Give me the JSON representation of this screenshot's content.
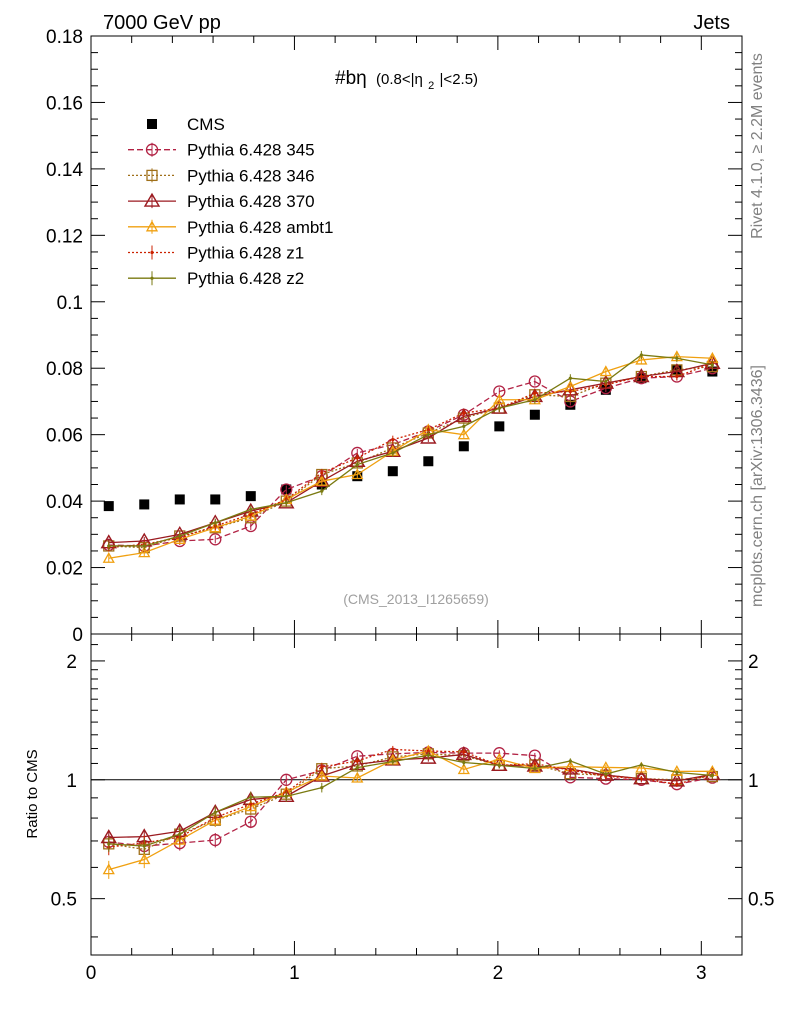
{
  "header": {
    "left": "7000 GeV pp",
    "right": "Jets"
  },
  "side_labels": {
    "rivet": "Rivet 4.1.0, ≥ 2.2M events",
    "mcplots": "mcplots.cern.ch [arXiv:1306.3436]"
  },
  "title": {
    "main": "#bη",
    "cut_prefix": "(0.8<|η",
    "cut_sub": "2",
    "cut_suffix": "|<2.5)"
  },
  "watermark": "(CMS_2013_I1265659)",
  "ratio_ylabel": "Ratio to CMS",
  "colors": {
    "cms": "#000000",
    "p345": "#b22244",
    "p346": "#a0701a",
    "p370": "#9b1a20",
    "ambt1": "#f0a010",
    "z1": "#cc2200",
    "z2": "#7a7a10"
  },
  "chart_data": {
    "type": "scatter",
    "x": [
      0.0873,
      0.2618,
      0.4363,
      0.6109,
      0.7854,
      0.9599,
      1.1345,
      1.309,
      1.4835,
      1.6581,
      1.8326,
      2.0071,
      2.1817,
      2.3562,
      2.5307,
      2.7053,
      2.8798,
      3.0543
    ],
    "xlim": [
      0,
      3.2
    ],
    "main_ylim": [
      0,
      0.18
    ],
    "main_yticks": [
      0,
      0.02,
      0.04,
      0.06,
      0.08,
      0.1,
      0.12,
      0.14,
      0.16,
      0.18
    ],
    "main_ytick_labels": [
      "0",
      "0.02",
      "0.04",
      "0.06",
      "0.08",
      "0.1",
      "0.12",
      "0.14",
      "0.16",
      "0.18"
    ],
    "ratio_ylim": [
      0.36,
      2.34
    ],
    "ratio_yticks": [
      0.5,
      1,
      2
    ],
    "ratio_ytick_labels": [
      "0.5",
      "1",
      "2"
    ],
    "xticks": [
      0,
      1,
      2,
      3
    ],
    "xtick_labels": [
      "0",
      "1",
      "2",
      "3"
    ],
    "series": [
      {
        "name": "CMS",
        "key": "cms",
        "marker": "square",
        "dash": "none",
        "err": 0.0,
        "values": [
          0.0385,
          0.039,
          0.0405,
          0.0405,
          0.0415,
          0.0435,
          0.045,
          0.0475,
          0.049,
          0.052,
          0.0565,
          0.0625,
          0.066,
          0.069,
          0.0735,
          0.077,
          0.0795,
          0.079
        ]
      },
      {
        "name": "Pythia 6.428 345",
        "key": "p345",
        "marker": "circle",
        "dash": "6,3",
        "err": 0.0012,
        "values": [
          0.0268,
          0.0265,
          0.028,
          0.0285,
          0.0325,
          0.0435,
          0.0475,
          0.0545,
          0.057,
          0.061,
          0.066,
          0.073,
          0.076,
          0.07,
          0.074,
          0.077,
          0.0775,
          0.08
        ]
      },
      {
        "name": "Pythia 6.428 346",
        "key": "p346",
        "marker": "square-open",
        "dash": "2,2",
        "err": 0.0012,
        "values": [
          0.0265,
          0.026,
          0.0295,
          0.032,
          0.035,
          0.04,
          0.048,
          0.0515,
          0.056,
          0.0605,
          0.065,
          0.068,
          0.072,
          0.0715,
          0.0755,
          0.0775,
          0.0795,
          0.0805
        ]
      },
      {
        "name": "Pythia 6.428 370",
        "key": "p370",
        "marker": "triangle-big",
        "dash": "none",
        "err": 0.0012,
        "values": [
          0.0275,
          0.028,
          0.03,
          0.0335,
          0.037,
          0.0395,
          0.046,
          0.052,
          0.055,
          0.059,
          0.0655,
          0.068,
          0.0715,
          0.0735,
          0.0755,
          0.0775,
          0.079,
          0.0815
        ]
      },
      {
        "name": "Pythia 6.428 ambt1",
        "key": "ambt1",
        "marker": "triangle",
        "dash": "none",
        "err": 0.0012,
        "values": [
          0.0228,
          0.0245,
          0.0285,
          0.032,
          0.0355,
          0.0405,
          0.046,
          0.048,
          0.055,
          0.0615,
          0.06,
          0.0705,
          0.0705,
          0.0745,
          0.079,
          0.0825,
          0.0835,
          0.083
        ]
      },
      {
        "name": "Pythia 6.428 z1",
        "key": "z1",
        "marker": "dot",
        "dash": "2,2",
        "err": 0.0012,
        "values": [
          0.026,
          0.027,
          0.029,
          0.0325,
          0.036,
          0.0405,
          0.0485,
          0.053,
          0.0585,
          0.0615,
          0.0665,
          0.068,
          0.0725,
          0.073,
          0.075,
          0.0775,
          0.0775,
          0.0815
        ]
      },
      {
        "name": "Pythia 6.428 z2",
        "key": "z2",
        "marker": "dot",
        "dash": "none",
        "err": 0.0012,
        "values": [
          0.0265,
          0.0265,
          0.0295,
          0.0335,
          0.0375,
          0.0395,
          0.043,
          0.051,
          0.0545,
          0.06,
          0.0625,
          0.068,
          0.0705,
          0.077,
          0.076,
          0.084,
          0.083,
          0.081
        ]
      }
    ]
  }
}
